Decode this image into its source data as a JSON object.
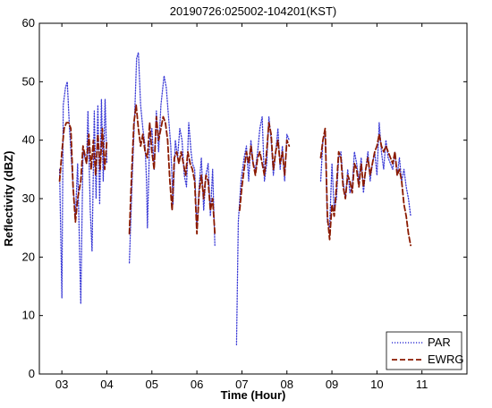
{
  "chart_data": {
    "type": "line",
    "title": "20190726:025002-104201(KST)",
    "xlabel": "Time (Hour)",
    "ylabel": "Reflectivity (dBZ)",
    "xlim": [
      2.5,
      12.0
    ],
    "ylim": [
      0,
      60
    ],
    "xticks": [
      3,
      4,
      5,
      6,
      7,
      8,
      9,
      10,
      11
    ],
    "xtick_labels": [
      "03",
      "04",
      "05",
      "06",
      "07",
      "08",
      "09",
      "10",
      "11"
    ],
    "yticks": [
      0,
      10,
      20,
      30,
      40,
      50,
      60
    ],
    "ytick_labels": [
      "0",
      "10",
      "20",
      "30",
      "40",
      "50",
      "60"
    ],
    "grid": false,
    "legend_position": "bottom-right",
    "series": [
      {
        "name": "PAR",
        "color": "#3b3bd6",
        "style": "dotted",
        "segments": [
          [
            [
              2.95,
              35
            ],
            [
              3.0,
              13
            ],
            [
              3.03,
              46
            ],
            [
              3.08,
              49
            ],
            [
              3.12,
              50
            ],
            [
              3.17,
              42
            ],
            [
              3.25,
              32
            ],
            [
              3.3,
              27
            ],
            [
              3.35,
              36
            ],
            [
              3.42,
              12
            ],
            [
              3.47,
              38
            ],
            [
              3.55,
              36
            ],
            [
              3.58,
              45
            ],
            [
              3.63,
              28
            ],
            [
              3.67,
              21
            ],
            [
              3.72,
              45
            ],
            [
              3.76,
              30
            ],
            [
              3.8,
              46
            ],
            [
              3.84,
              29
            ],
            [
              3.88,
              47
            ],
            [
              3.92,
              33
            ],
            [
              3.96,
              47
            ],
            [
              4.0,
              36
            ]
          ],
          [
            [
              4.5,
              19
            ],
            [
              4.56,
              33
            ],
            [
              4.62,
              45
            ],
            [
              4.66,
              54
            ],
            [
              4.7,
              55
            ],
            [
              4.75,
              46
            ],
            [
              4.8,
              42
            ],
            [
              4.85,
              39
            ],
            [
              4.88,
              33
            ],
            [
              4.9,
              25
            ],
            [
              4.95,
              40
            ],
            [
              5.0,
              42
            ],
            [
              5.05,
              35
            ],
            [
              5.1,
              45
            ],
            [
              5.15,
              38
            ],
            [
              5.2,
              46
            ],
            [
              5.27,
              51
            ],
            [
              5.32,
              49
            ],
            [
              5.37,
              44
            ],
            [
              5.42,
              39
            ],
            [
              5.47,
              29
            ],
            [
              5.52,
              40
            ],
            [
              5.57,
              37
            ],
            [
              5.62,
              42
            ],
            [
              5.67,
              40
            ],
            [
              5.72,
              34
            ],
            [
              5.77,
              32
            ],
            [
              5.82,
              43
            ],
            [
              5.87,
              38
            ],
            [
              5.9,
              36
            ],
            [
              5.95,
              35
            ],
            [
              6.0,
              25
            ],
            [
              6.05,
              32
            ],
            [
              6.1,
              37
            ],
            [
              6.15,
              28
            ],
            [
              6.2,
              34
            ],
            [
              6.25,
              36
            ],
            [
              6.3,
              27
            ],
            [
              6.35,
              35
            ],
            [
              6.4,
              22
            ]
          ],
          [
            [
              6.88,
              5
            ],
            [
              6.92,
              26
            ],
            [
              6.98,
              33
            ],
            [
              7.05,
              37
            ],
            [
              7.1,
              39
            ],
            [
              7.15,
              33
            ],
            [
              7.2,
              40
            ],
            [
              7.25,
              36
            ],
            [
              7.3,
              35
            ],
            [
              7.35,
              38
            ],
            [
              7.4,
              42
            ],
            [
              7.45,
              44
            ],
            [
              7.5,
              33
            ],
            [
              7.55,
              36
            ],
            [
              7.6,
              44
            ],
            [
              7.65,
              40
            ],
            [
              7.7,
              34
            ],
            [
              7.75,
              38
            ],
            [
              7.8,
              42
            ],
            [
              7.85,
              35
            ],
            [
              7.9,
              39
            ],
            [
              7.95,
              33
            ],
            [
              8.0,
              41
            ],
            [
              8.05,
              40
            ]
          ],
          [
            [
              8.75,
              33
            ],
            [
              8.8,
              40
            ],
            [
              8.85,
              41
            ],
            [
              8.9,
              26
            ],
            [
              8.95,
              25
            ],
            [
              9.0,
              36
            ],
            [
              9.05,
              28
            ],
            [
              9.1,
              30
            ],
            [
              9.15,
              37
            ],
            [
              9.2,
              38
            ],
            [
              9.25,
              33
            ],
            [
              9.3,
              30
            ],
            [
              9.35,
              35
            ],
            [
              9.4,
              31
            ],
            [
              9.45,
              32
            ],
            [
              9.5,
              38
            ],
            [
              9.55,
              36
            ],
            [
              9.6,
              33
            ],
            [
              9.65,
              37
            ],
            [
              9.7,
              31
            ],
            [
              9.75,
              35
            ],
            [
              9.8,
              38
            ],
            [
              9.85,
              33
            ],
            [
              9.9,
              36
            ],
            [
              9.95,
              38
            ],
            [
              10.0,
              34
            ],
            [
              10.05,
              43
            ],
            [
              10.1,
              38
            ],
            [
              10.15,
              35
            ],
            [
              10.2,
              40
            ],
            [
              10.25,
              37
            ],
            [
              10.3,
              36
            ],
            [
              10.35,
              35
            ],
            [
              10.4,
              38
            ],
            [
              10.45,
              34
            ],
            [
              10.5,
              37
            ],
            [
              10.55,
              33
            ],
            [
              10.6,
              35
            ],
            [
              10.65,
              32
            ],
            [
              10.7,
              30
            ],
            [
              10.75,
              27
            ]
          ]
        ]
      },
      {
        "name": "EWRG",
        "color": "#8b1a00",
        "style": "dashed",
        "segments": [
          [
            [
              2.95,
              33
            ],
            [
              3.0,
              38
            ],
            [
              3.05,
              42
            ],
            [
              3.1,
              43
            ],
            [
              3.15,
              43
            ],
            [
              3.2,
              42
            ],
            [
              3.25,
              32
            ],
            [
              3.3,
              26
            ],
            [
              3.35,
              30
            ],
            [
              3.42,
              33
            ],
            [
              3.47,
              39
            ],
            [
              3.55,
              36
            ],
            [
              3.6,
              41
            ],
            [
              3.65,
              35
            ],
            [
              3.7,
              40
            ],
            [
              3.75,
              34
            ],
            [
              3.8,
              41
            ],
            [
              3.85,
              35
            ],
            [
              3.9,
              42
            ],
            [
              3.95,
              35
            ],
            [
              4.0,
              40
            ]
          ],
          [
            [
              4.5,
              24
            ],
            [
              4.55,
              34
            ],
            [
              4.6,
              43
            ],
            [
              4.65,
              46
            ],
            [
              4.7,
              42
            ],
            [
              4.75,
              39
            ],
            [
              4.8,
              41
            ],
            [
              4.85,
              38
            ],
            [
              4.9,
              37
            ],
            [
              4.95,
              43
            ],
            [
              5.0,
              38
            ],
            [
              5.05,
              35
            ],
            [
              5.1,
              44
            ],
            [
              5.15,
              40
            ],
            [
              5.2,
              42
            ],
            [
              5.25,
              44
            ],
            [
              5.3,
              43
            ],
            [
              5.35,
              40
            ],
            [
              5.4,
              33
            ],
            [
              5.45,
              28
            ],
            [
              5.5,
              37
            ],
            [
              5.55,
              38
            ],
            [
              5.6,
              36
            ],
            [
              5.65,
              38
            ],
            [
              5.7,
              36
            ],
            [
              5.75,
              34
            ],
            [
              5.8,
              38
            ],
            [
              5.85,
              36
            ],
            [
              5.9,
              35
            ],
            [
              5.95,
              33
            ],
            [
              6.0,
              24
            ],
            [
              6.05,
              31
            ],
            [
              6.1,
              34
            ],
            [
              6.15,
              30
            ],
            [
              6.2,
              34
            ],
            [
              6.25,
              33
            ],
            [
              6.3,
              28
            ],
            [
              6.35,
              30
            ],
            [
              6.4,
              24
            ]
          ],
          [
            [
              6.95,
              28
            ],
            [
              7.0,
              32
            ],
            [
              7.05,
              35
            ],
            [
              7.1,
              38
            ],
            [
              7.15,
              36
            ],
            [
              7.2,
              39
            ],
            [
              7.25,
              36
            ],
            [
              7.3,
              34
            ],
            [
              7.35,
              37
            ],
            [
              7.4,
              38
            ],
            [
              7.45,
              36
            ],
            [
              7.5,
              34
            ],
            [
              7.55,
              38
            ],
            [
              7.6,
              43
            ],
            [
              7.65,
              41
            ],
            [
              7.7,
              35
            ],
            [
              7.75,
              38
            ],
            [
              7.8,
              40
            ],
            [
              7.85,
              36
            ],
            [
              7.9,
              38
            ],
            [
              7.95,
              34
            ],
            [
              8.0,
              40
            ],
            [
              8.05,
              39
            ]
          ],
          [
            [
              8.75,
              37
            ],
            [
              8.8,
              40
            ],
            [
              8.85,
              42
            ],
            [
              8.9,
              27
            ],
            [
              8.95,
              23
            ],
            [
              9.0,
              29
            ],
            [
              9.05,
              27
            ],
            [
              9.1,
              32
            ],
            [
              9.15,
              38
            ],
            [
              9.2,
              37
            ],
            [
              9.25,
              32
            ],
            [
              9.3,
              30
            ],
            [
              9.35,
              34
            ],
            [
              9.4,
              33
            ],
            [
              9.45,
              31
            ],
            [
              9.5,
              36
            ],
            [
              9.55,
              35
            ],
            [
              9.6,
              32
            ],
            [
              9.65,
              36
            ],
            [
              9.7,
              32
            ],
            [
              9.75,
              35
            ],
            [
              9.8,
              37
            ],
            [
              9.85,
              34
            ],
            [
              9.9,
              36
            ],
            [
              9.95,
              38
            ],
            [
              10.0,
              39
            ],
            [
              10.05,
              41
            ],
            [
              10.1,
              39
            ],
            [
              10.15,
              38
            ],
            [
              10.2,
              39
            ],
            [
              10.25,
              38
            ],
            [
              10.3,
              37
            ],
            [
              10.35,
              36
            ],
            [
              10.4,
              38
            ],
            [
              10.45,
              34
            ],
            [
              10.5,
              35
            ],
            [
              10.55,
              33
            ],
            [
              10.6,
              29
            ],
            [
              10.65,
              27
            ],
            [
              10.7,
              24
            ],
            [
              10.75,
              22
            ]
          ]
        ]
      }
    ]
  }
}
